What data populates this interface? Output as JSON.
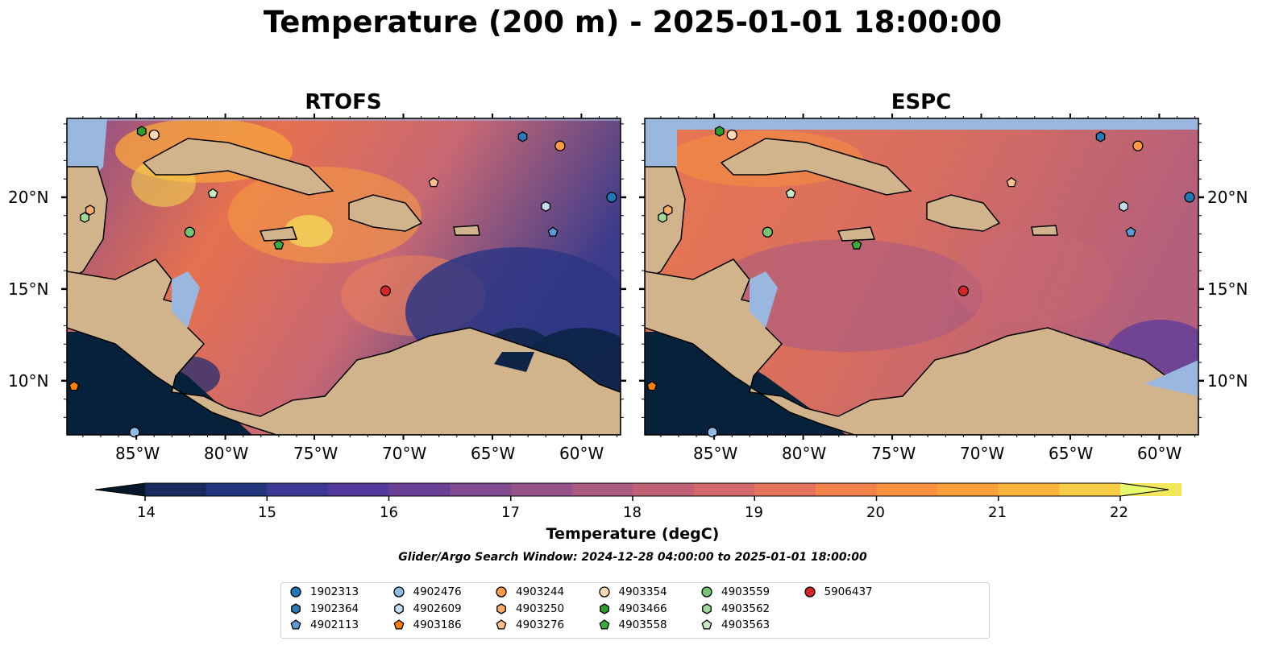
{
  "title": "Temperature (200 m) - 2025-01-01 18:00:00",
  "panels": [
    {
      "title": "RTOFS"
    },
    {
      "title": "ESPC"
    }
  ],
  "lon_ticks": [
    "85°W",
    "80°W",
    "75°W",
    "70°W",
    "65°W",
    "60°W"
  ],
  "lat_ticks": [
    "20°N",
    "15°N",
    "10°N"
  ],
  "colorbar": {
    "label": "Temperature (degC)",
    "ticks": [
      "14",
      "15",
      "16",
      "17",
      "18",
      "19",
      "20",
      "21",
      "22"
    ],
    "range": [
      14,
      22
    ],
    "colors": [
      "#0a1c33",
      "#162a5c",
      "#22357d",
      "#3a3994",
      "#52399c",
      "#6a3f98",
      "#7f4a92",
      "#945288",
      "#a95a80",
      "#bf6077",
      "#d3686a",
      "#e5735c",
      "#f3804b",
      "#f98f3f",
      "#fba13a",
      "#fbb63b",
      "#f8cd45",
      "#f2e65a"
    ],
    "over_color": "#e8fb6e",
    "under_color": "#06162a"
  },
  "search_window": "Glider/Argo Search Window: 2024-12-28 04:00:00 to 2025-01-01 18:00:00",
  "legend": [
    {
      "id": "1902313",
      "color": "#1f77b4",
      "shape": "circle"
    },
    {
      "id": "1902364",
      "color": "#2a7bb8",
      "shape": "hexagon"
    },
    {
      "id": "4902113",
      "color": "#5b9bd5",
      "shape": "pentagon"
    },
    {
      "id": "4902476",
      "color": "#8fbde6",
      "shape": "circle"
    },
    {
      "id": "4902609",
      "color": "#c6dcef",
      "shape": "hexagon"
    },
    {
      "id": "4903186",
      "color": "#fd7f0e",
      "shape": "pentagon"
    },
    {
      "id": "4903244",
      "color": "#fd9a45",
      "shape": "circle"
    },
    {
      "id": "4903250",
      "color": "#fdae6b",
      "shape": "hexagon"
    },
    {
      "id": "4903276",
      "color": "#fdc08c",
      "shape": "pentagon"
    },
    {
      "id": "4903354",
      "color": "#fdd9b4",
      "shape": "circle"
    },
    {
      "id": "4903466",
      "color": "#2ca02c",
      "shape": "hexagon"
    },
    {
      "id": "4903558",
      "color": "#3aad3a",
      "shape": "pentagon"
    },
    {
      "id": "4903559",
      "color": "#74c476",
      "shape": "circle"
    },
    {
      "id": "4903562",
      "color": "#a1d99b",
      "shape": "hexagon"
    },
    {
      "id": "4903563",
      "color": "#c7e9c0",
      "shape": "pentagon"
    },
    {
      "id": "5906437",
      "color": "#d62728",
      "shape": "circle"
    }
  ],
  "markers": [
    {
      "id": "4903466",
      "lon": -84.7,
      "lat": 23.6
    },
    {
      "id": "4903354",
      "lon": -84.0,
      "lat": 23.4
    },
    {
      "id": "1902364",
      "lon": -63.3,
      "lat": 23.3
    },
    {
      "id": "4903244",
      "lon": -61.2,
      "lat": 22.8
    },
    {
      "id": "4903276",
      "lon": -68.3,
      "lat": 20.8
    },
    {
      "id": "4903563",
      "lon": -80.7,
      "lat": 20.2
    },
    {
      "id": "1902313",
      "lon": -58.3,
      "lat": 20.0
    },
    {
      "id": "4902609",
      "lon": -62.0,
      "lat": 19.5
    },
    {
      "id": "4903250",
      "lon": -87.6,
      "lat": 19.3
    },
    {
      "id": "4903562",
      "lon": -87.9,
      "lat": 18.9
    },
    {
      "id": "4903559",
      "lon": -82.0,
      "lat": 18.1
    },
    {
      "id": "4902113",
      "lon": -61.6,
      "lat": 18.1
    },
    {
      "id": "4903558",
      "lon": -77.0,
      "lat": 17.4
    },
    {
      "id": "5906437",
      "lon": -71.0,
      "lat": 14.9
    },
    {
      "id": "4903186",
      "lon": -88.5,
      "lat": 9.7
    },
    {
      "id": "4902476",
      "lon": -85.1,
      "lat": 7.2
    }
  ]
}
